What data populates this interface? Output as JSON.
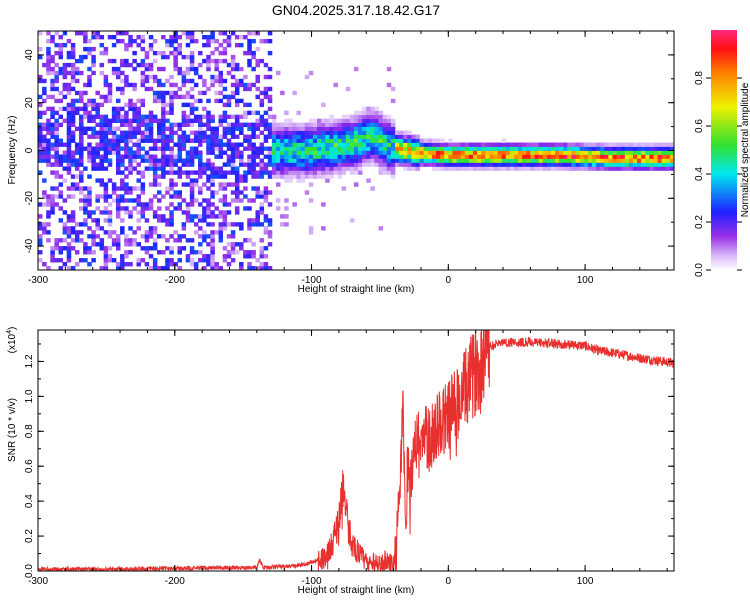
{
  "title": "GN04.2025.317.18.42.G17",
  "colorbar": {
    "label": "Normalized spectral amplitude",
    "ticks": [
      "0.0",
      "0.2",
      "0.4",
      "0.6",
      "0.8"
    ],
    "tick_values": [
      0.0,
      0.2,
      0.4,
      0.6,
      0.8
    ],
    "range": [
      0,
      1
    ],
    "colormap": "rainbow (white→violet→blue→cyan→green→yellow→red→magenta)"
  },
  "chart_data": [
    {
      "type": "heatmap",
      "title": "GN04.2025.317.18.42.G17",
      "xlabel": "Height of straight line (km)",
      "ylabel": "Frequency (Hz)",
      "xlim": [
        -300,
        165
      ],
      "ylim": [
        -50,
        50
      ],
      "xticks": [
        -300,
        -200,
        -100,
        0,
        100
      ],
      "xtick_labels": [
        "-300",
        "-200",
        "-100",
        "0",
        "100"
      ],
      "yticks": [
        -40,
        -20,
        0,
        20,
        40
      ],
      "ytick_labels": [
        "-40",
        "-20",
        "0",
        "20",
        "40"
      ],
      "ridge": {
        "x": [
          -300,
          -200,
          -130,
          -100,
          -70,
          -55,
          -40,
          -20,
          0,
          40,
          80,
          100,
          120,
          140,
          165
        ],
        "y": [
          5,
          2,
          0,
          0,
          3,
          6,
          1,
          -1,
          -2,
          -2,
          -2,
          -2.5,
          -3,
          -3,
          -3
        ]
      },
      "noise_region": {
        "x": [
          -300,
          -130
        ],
        "amplitude": [
          0.1,
          0.35
        ],
        "freq_span": [
          -50,
          50
        ]
      }
    },
    {
      "type": "line",
      "xlabel": "Height of straight line (km)",
      "ylabel": "SNR (10 * v/v)",
      "y_multiplier_label": "(x10",
      "y_multiplier_exp": "4",
      "y_multiplier_close": ")",
      "xlim": [
        -300,
        165
      ],
      "ylim": [
        0,
        1.38
      ],
      "xticks": [
        -300,
        -200,
        -100,
        0,
        100
      ],
      "xtick_labels": [
        "-300",
        "-200",
        "-100",
        "0",
        "100"
      ],
      "yticks": [
        0.0,
        0.2,
        0.4,
        0.6,
        0.8,
        1.0,
        1.2
      ],
      "ytick_labels": [
        "0.0",
        "0.2",
        "0.4",
        "0.6",
        "0.8",
        "1.0",
        "1.2"
      ],
      "color": "#e8302e",
      "series": [
        {
          "x": [
            -300,
            -250,
            -200,
            -140,
            -138,
            -135,
            -110,
            -100,
            -90,
            -85,
            -80,
            -77,
            -75,
            -73,
            -70,
            -65,
            -60,
            -50,
            -45,
            -40,
            -36,
            -33,
            -31,
            -30,
            -28,
            -25,
            -20,
            -15,
            -10,
            -5,
            0,
            10,
            20,
            25,
            30,
            35,
            40,
            60,
            80,
            100,
            110,
            120,
            140,
            165
          ],
          "y": [
            0.01,
            0.01,
            0.015,
            0.02,
            0.06,
            0.02,
            0.03,
            0.05,
            0.08,
            0.15,
            0.3,
            0.5,
            0.35,
            0.25,
            0.15,
            0.1,
            0.05,
            0.04,
            0.06,
            0.03,
            0.4,
            0.9,
            0.15,
            0.6,
            0.5,
            0.7,
            0.8,
            0.75,
            0.8,
            0.85,
            0.9,
            1.0,
            1.15,
            1.22,
            1.28,
            1.3,
            1.31,
            1.31,
            1.3,
            1.29,
            1.26,
            1.25,
            1.22,
            1.19
          ]
        }
      ]
    }
  ]
}
